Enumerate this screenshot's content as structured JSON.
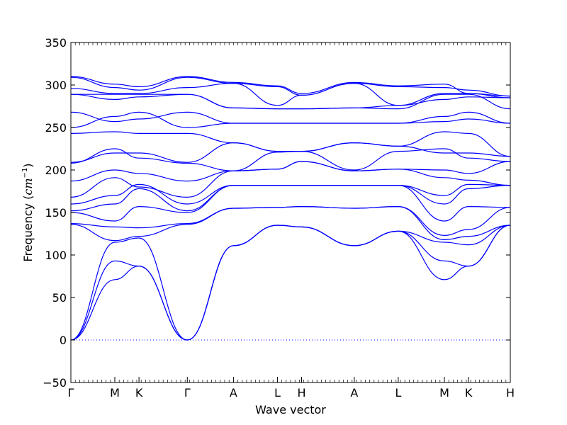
{
  "chart_data": {
    "type": "line",
    "title": "",
    "xlabel": "Wave vector",
    "ylabel_prefix": "Frequency (",
    "ylabel_unit": "cm",
    "ylabel_exp": "−1",
    "ylabel_suffix": ")",
    "ylim": [
      -50,
      350
    ],
    "yticks": [
      -50,
      0,
      50,
      100,
      150,
      200,
      250,
      300,
      350
    ],
    "xlim": [
      0,
      10
    ],
    "grid": false,
    "legend": "none",
    "colors": {
      "bands": "#0000ff",
      "zero_line": "#0000ff"
    },
    "xticks": [
      {
        "label": "Γ",
        "x": 0
      },
      {
        "label": "M",
        "x": 1
      },
      {
        "label": "K",
        "x": 1.55
      },
      {
        "label": "Γ",
        "x": 2.65
      },
      {
        "label": "A",
        "x": 3.7
      },
      {
        "label": "L",
        "x": 4.7
      },
      {
        "label": "H",
        "x": 5.25
      },
      {
        "label": "A",
        "x": 6.45
      },
      {
        "label": "L",
        "x": 7.45
      },
      {
        "label": "M",
        "x": 8.5
      },
      {
        "label": "K",
        "x": 9.05
      },
      {
        "label": "H",
        "x": 10
      }
    ],
    "zero_line": 0,
    "series": [
      {
        "x": [
          0,
          1,
          1.55,
          2.65,
          3.7,
          4.7,
          5.25,
          6.45,
          7.45,
          8.5,
          9.05,
          10
        ],
        "values": [
          0,
          71,
          87,
          0,
          111,
          135,
          133,
          111,
          128,
          71,
          87,
          135
        ]
      },
      {
        "x": [
          0,
          1,
          1.55,
          2.65,
          3.7,
          4.7,
          5.25,
          6.45,
          7.45,
          8.5,
          9.05,
          10
        ],
        "values": [
          0,
          93,
          87,
          0,
          111,
          135,
          133,
          111,
          128,
          93,
          87,
          135
        ]
      },
      {
        "x": [
          0,
          1,
          1.55,
          2.65,
          3.7,
          4.7,
          5.25,
          6.45,
          7.45,
          8.5,
          9.05,
          10
        ],
        "values": [
          0,
          115,
          120,
          0,
          111,
          135,
          133,
          111,
          128,
          115,
          112,
          135
        ]
      },
      {
        "x": [
          0,
          1,
          1.55,
          2.65,
          3.7,
          4.7,
          5.25,
          6.45,
          7.45,
          8.5,
          9.05,
          10
        ],
        "values": [
          136,
          117,
          122,
          136,
          155,
          156,
          157,
          155,
          157,
          118,
          122,
          135
        ]
      },
      {
        "x": [
          0,
          1,
          1.55,
          2.65,
          3.7,
          4.7,
          5.25,
          6.45,
          7.45,
          8.5,
          9.05,
          10
        ],
        "values": [
          137,
          133,
          132,
          137,
          155,
          156,
          157,
          155,
          157,
          123,
          130,
          156
        ]
      },
      {
        "x": [
          0,
          1,
          1.55,
          2.65,
          3.7,
          4.7,
          5.25,
          6.45,
          7.45,
          8.5,
          9.05,
          10
        ],
        "values": [
          150,
          140,
          157,
          150,
          182,
          182,
          182,
          182,
          182,
          140,
          157,
          156
        ]
      },
      {
        "x": [
          0,
          1,
          1.55,
          2.65,
          3.7,
          4.7,
          5.25,
          6.45,
          7.45,
          8.5,
          9.05,
          10
        ],
        "values": [
          152,
          160,
          178,
          152,
          182,
          182,
          182,
          182,
          182,
          160,
          178,
          182
        ]
      },
      {
        "x": [
          0,
          1,
          1.55,
          2.65,
          3.7,
          4.7,
          5.25,
          6.45,
          7.45,
          8.5,
          9.05,
          10
        ],
        "values": [
          160,
          170,
          183,
          160,
          182,
          182,
          182,
          182,
          182,
          170,
          183,
          182
        ]
      },
      {
        "x": [
          0,
          1,
          1.55,
          2.65,
          3.7,
          4.7,
          5.25,
          6.45,
          7.45,
          8.5,
          9.05,
          10
        ],
        "values": [
          168,
          191,
          180,
          168,
          199,
          201,
          210,
          199,
          201,
          191,
          188,
          182
        ]
      },
      {
        "x": [
          0,
          1,
          1.55,
          2.65,
          3.7,
          4.7,
          5.25,
          6.45,
          7.45,
          8.5,
          9.05,
          10
        ],
        "values": [
          187,
          200,
          196,
          187,
          199,
          201,
          210,
          199,
          201,
          200,
          196,
          210
        ]
      },
      {
        "x": [
          0,
          1,
          1.55,
          2.65,
          3.7,
          4.7,
          5.25,
          6.45,
          7.45,
          8.5,
          9.05,
          10
        ],
        "values": [
          208,
          225,
          214,
          208,
          199,
          221,
          222,
          200,
          222,
          225,
          214,
          210
        ]
      },
      {
        "x": [
          0,
          1,
          1.55,
          2.65,
          3.7,
          4.7,
          5.25,
          6.45,
          7.45,
          8.5,
          9.05,
          10
        ],
        "values": [
          209,
          220,
          220,
          209,
          232,
          222,
          222,
          232,
          228,
          220,
          220,
          216
        ]
      },
      {
        "x": [
          0,
          1,
          1.55,
          2.65,
          3.7,
          4.7,
          5.25,
          6.45,
          7.45,
          8.5,
          9.05,
          10
        ],
        "values": [
          243,
          245,
          243,
          243,
          232,
          222,
          222,
          232,
          228,
          245,
          243,
          216
        ]
      },
      {
        "x": [
          0,
          1,
          1.55,
          2.65,
          3.7,
          4.7,
          5.25,
          6.45,
          7.45,
          8.5,
          9.05,
          10
        ],
        "values": [
          250,
          263,
          268,
          250,
          255,
          255,
          255,
          255,
          255,
          263,
          268,
          255
        ]
      },
      {
        "x": [
          0,
          1,
          1.55,
          2.65,
          3.7,
          4.7,
          5.25,
          6.45,
          7.45,
          8.5,
          9.05,
          10
        ],
        "values": [
          268,
          257,
          260,
          268,
          255,
          255,
          255,
          255,
          255,
          257,
          260,
          255
        ]
      },
      {
        "x": [
          0,
          1,
          1.55,
          2.65,
          3.7,
          4.7,
          5.25,
          6.45,
          7.45,
          8.5,
          9.05,
          10
        ],
        "values": [
          289,
          289,
          289,
          289,
          273,
          272,
          272,
          273,
          272,
          289,
          289,
          272
        ]
      },
      {
        "x": [
          0,
          1,
          1.55,
          2.65,
          3.7,
          4.7,
          5.25,
          6.45,
          7.45,
          8.5,
          9.05,
          10
        ],
        "values": [
          289,
          283,
          286,
          289,
          273,
          272,
          272,
          273,
          276,
          283,
          286,
          285
        ]
      },
      {
        "x": [
          0,
          1,
          1.55,
          2.65,
          3.7,
          4.7,
          5.25,
          6.45,
          7.45,
          8.5,
          9.05,
          10
        ],
        "values": [
          296,
          290,
          290,
          297,
          302,
          276,
          288,
          302,
          276,
          290,
          290,
          285
        ]
      },
      {
        "x": [
          0,
          1,
          1.55,
          2.65,
          3.7,
          4.7,
          5.25,
          6.45,
          7.45,
          8.5,
          9.05,
          10
        ],
        "values": [
          309,
          297,
          294,
          309,
          302,
          298,
          288,
          302,
          298,
          297,
          294,
          287
        ]
      },
      {
        "x": [
          0,
          1,
          1.55,
          2.65,
          3.7,
          4.7,
          5.25,
          6.45,
          7.45,
          8.5,
          9.05,
          10
        ],
        "values": [
          310,
          301,
          298,
          310,
          303,
          299,
          290,
          303,
          299,
          301,
          290,
          287
        ]
      }
    ]
  }
}
